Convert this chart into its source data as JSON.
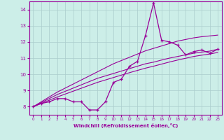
{
  "xlabel": "Windchill (Refroidissement éolien,°C)",
  "bg_color": "#cceee8",
  "line_color": "#990099",
  "grid_color": "#aacccc",
  "x_data": [
    0,
    1,
    2,
    3,
    4,
    5,
    6,
    7,
    8,
    9,
    10,
    11,
    12,
    13,
    14,
    15,
    16,
    17,
    18,
    19,
    20,
    21,
    22,
    23
  ],
  "y_main": [
    8.0,
    8.2,
    8.3,
    8.5,
    8.5,
    8.3,
    8.3,
    7.8,
    7.8,
    8.3,
    9.5,
    9.7,
    10.5,
    10.8,
    12.4,
    14.4,
    12.1,
    12.0,
    11.8,
    11.2,
    11.4,
    11.5,
    11.3,
    11.55
  ],
  "y_line1": [
    8.0,
    8.2,
    8.4,
    8.6,
    8.78,
    8.96,
    9.14,
    9.32,
    9.5,
    9.65,
    9.8,
    9.95,
    10.1,
    10.24,
    10.38,
    10.5,
    10.63,
    10.76,
    10.88,
    10.99,
    11.1,
    11.18,
    11.25,
    11.35
  ],
  "y_line2": [
    8.0,
    8.25,
    8.5,
    8.75,
    8.95,
    9.15,
    9.35,
    9.55,
    9.75,
    9.9,
    10.05,
    10.2,
    10.35,
    10.5,
    10.65,
    10.75,
    10.88,
    11.0,
    11.1,
    11.2,
    11.3,
    11.37,
    11.43,
    11.55
  ],
  "y_line3": [
    8.0,
    8.3,
    8.6,
    8.9,
    9.15,
    9.4,
    9.65,
    9.9,
    10.15,
    10.4,
    10.65,
    10.85,
    11.05,
    11.25,
    11.45,
    11.6,
    11.75,
    11.9,
    12.05,
    12.15,
    12.25,
    12.32,
    12.37,
    12.42
  ],
  "ylim": [
    7.5,
    14.5
  ],
  "yticks": [
    8,
    9,
    10,
    11,
    12,
    13,
    14
  ],
  "xlim": [
    -0.5,
    23.5
  ],
  "xtick_labels": [
    "0",
    "1",
    "2",
    "3",
    "4",
    "5",
    "6",
    "7",
    "8",
    "9",
    "10",
    "11",
    "12",
    "13",
    "14",
    "15",
    "16",
    "17",
    "18",
    "19",
    "20",
    "21",
    "22",
    "23"
  ]
}
